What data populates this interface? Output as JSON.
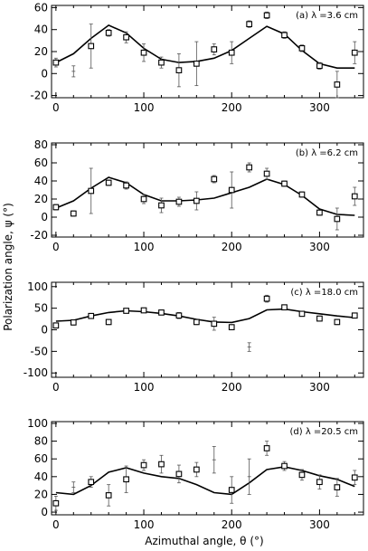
{
  "figure": {
    "ylabel": "Polarization angle, ψ (°)",
    "xlabel": "Azimuthal angle, θ (°)"
  },
  "chart_data": [
    {
      "type": "line",
      "panel_label": "(a) λ =3.6 cm",
      "xlim": [
        -5,
        350
      ],
      "ylim": [
        -22,
        62
      ],
      "xticks": [
        0,
        100,
        200,
        300
      ],
      "yticks": [
        -20,
        0,
        20,
        40,
        60
      ],
      "model": {
        "x": [
          0,
          20,
          40,
          60,
          80,
          100,
          120,
          140,
          160,
          180,
          200,
          220,
          240,
          260,
          280,
          300,
          320,
          340
        ],
        "y": [
          10,
          18,
          32,
          44,
          37,
          23,
          13,
          10,
          11,
          14,
          21,
          32,
          43,
          36,
          21,
          9,
          5,
          5
        ]
      },
      "observed": {
        "x": [
          0,
          20,
          40,
          60,
          80,
          100,
          120,
          140,
          160,
          180,
          200,
          220,
          240,
          260,
          280,
          300,
          320,
          340
        ],
        "y": [
          10,
          2,
          25,
          37,
          33,
          19,
          10,
          3,
          9,
          22,
          19,
          45,
          53,
          35,
          23,
          7,
          -10,
          19
        ],
        "marker": [
          true,
          false,
          true,
          true,
          true,
          true,
          true,
          true,
          true,
          true,
          true,
          true,
          true,
          true,
          true,
          true,
          true,
          true
        ],
        "err": [
          4,
          5,
          20,
          3,
          5,
          8,
          5,
          15,
          20,
          5,
          10,
          3,
          3,
          3,
          3,
          3,
          12,
          10
        ]
      }
    },
    {
      "type": "line",
      "panel_label": "(b) λ =6.2 cm",
      "xlim": [
        -5,
        350
      ],
      "ylim": [
        -22,
        82
      ],
      "xticks": [
        0,
        100,
        200,
        300
      ],
      "yticks": [
        -20,
        0,
        20,
        40,
        60,
        80
      ],
      "model": {
        "x": [
          0,
          20,
          40,
          60,
          80,
          100,
          120,
          140,
          160,
          180,
          200,
          220,
          240,
          260,
          280,
          300,
          320,
          340
        ],
        "y": [
          10,
          18,
          32,
          44,
          38,
          25,
          18,
          18,
          19,
          21,
          27,
          33,
          42,
          36,
          24,
          9,
          3,
          2
        ]
      },
      "observed": {
        "x": [
          0,
          20,
          40,
          60,
          80,
          100,
          120,
          140,
          160,
          180,
          200,
          220,
          240,
          260,
          280,
          300,
          320,
          340
        ],
        "y": [
          11,
          4,
          29,
          38,
          35,
          20,
          13,
          17,
          18,
          42,
          30,
          55,
          48,
          37,
          25,
          5,
          -2,
          23
        ],
        "marker": [
          true,
          true,
          true,
          true,
          true,
          true,
          true,
          true,
          true,
          true,
          true,
          true,
          true,
          true,
          true,
          true,
          true,
          true
        ],
        "err": [
          3,
          3,
          25,
          3,
          4,
          5,
          8,
          5,
          10,
          4,
          20,
          5,
          6,
          3,
          3,
          3,
          12,
          10
        ]
      }
    },
    {
      "type": "line",
      "panel_label": "(c) λ =18.0 cm",
      "xlim": [
        -5,
        350
      ],
      "ylim": [
        -110,
        110
      ],
      "xticks": [
        0,
        100,
        200,
        300
      ],
      "yticks": [
        -100,
        -50,
        0,
        50,
        100
      ],
      "model": {
        "x": [
          0,
          20,
          40,
          60,
          80,
          100,
          120,
          140,
          160,
          180,
          200,
          220,
          240,
          260,
          280,
          300,
          320,
          340
        ],
        "y": [
          20,
          22,
          32,
          40,
          44,
          42,
          38,
          32,
          24,
          18,
          17,
          26,
          46,
          48,
          42,
          37,
          32,
          28
        ]
      },
      "observed": {
        "x": [
          0,
          20,
          40,
          60,
          80,
          100,
          120,
          140,
          160,
          180,
          200,
          220,
          240,
          260,
          280,
          300,
          320,
          340
        ],
        "y": [
          10,
          17,
          32,
          18,
          44,
          45,
          40,
          33,
          18,
          14,
          6,
          -40,
          72,
          52,
          37,
          26,
          18,
          33
        ],
        "marker": [
          true,
          true,
          true,
          true,
          true,
          true,
          true,
          true,
          true,
          true,
          true,
          false,
          true,
          true,
          true,
          true,
          true,
          true
        ],
        "err": [
          6,
          6,
          6,
          6,
          5,
          5,
          5,
          7,
          6,
          15,
          6,
          10,
          8,
          5,
          5,
          5,
          6,
          6
        ]
      }
    },
    {
      "type": "line",
      "panel_label": "(d) λ =20.5 cm",
      "xlim": [
        -5,
        350
      ],
      "ylim": [
        -3,
        102
      ],
      "xticks": [
        0,
        100,
        200,
        300
      ],
      "yticks": [
        0,
        20,
        40,
        60,
        80,
        100
      ],
      "model": {
        "x": [
          0,
          20,
          40,
          60,
          80,
          100,
          120,
          140,
          160,
          180,
          200,
          220,
          240,
          260,
          280,
          300,
          320,
          340
        ],
        "y": [
          22,
          20,
          30,
          45,
          50,
          44,
          40,
          38,
          31,
          22,
          20,
          33,
          48,
          51,
          47,
          41,
          37,
          29
        ]
      },
      "observed": {
        "x": [
          0,
          20,
          40,
          60,
          80,
          100,
          120,
          140,
          160,
          180,
          200,
          220,
          240,
          260,
          280,
          300,
          320,
          340
        ],
        "y": [
          10,
          28,
          34,
          19,
          37,
          53,
          54,
          43,
          48,
          59,
          25,
          40,
          72,
          52,
          42,
          34,
          28,
          39
        ],
        "marker": [
          true,
          false,
          true,
          true,
          true,
          true,
          true,
          true,
          true,
          false,
          true,
          false,
          true,
          true,
          true,
          true,
          true,
          true
        ],
        "err": [
          8,
          6,
          6,
          12,
          15,
          6,
          10,
          10,
          8,
          15,
          15,
          20,
          8,
          5,
          6,
          8,
          10,
          8
        ]
      }
    }
  ]
}
